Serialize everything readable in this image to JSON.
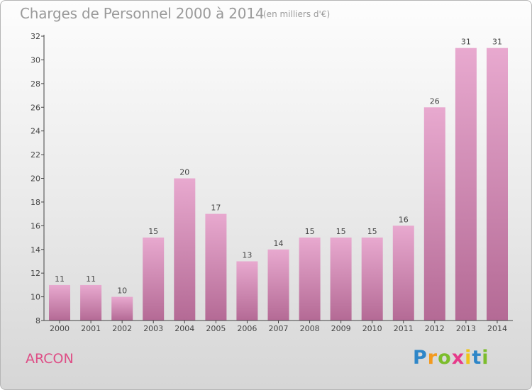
{
  "header": {
    "title": "Charges de Personnel 2000 à 2014",
    "unit": "(en milliers d'€)"
  },
  "footer": {
    "city": "ARCON",
    "logo_letters": [
      "P",
      "r",
      "o",
      "x",
      "i",
      "t",
      "i"
    ],
    "logo_colors": [
      "#2e86c8",
      "#f39a1e",
      "#7cbd2c",
      "#e63a8a",
      "#f0c419",
      "#2e86c8",
      "#7cbd2c"
    ]
  },
  "colors": {
    "bar_top": "#e8a9cf",
    "bar_bottom": "#b46a95",
    "city": "#de4e86",
    "title": "#9a9a9a"
  },
  "chart_data": {
    "type": "bar",
    "title": "Charges de Personnel 2000 à 2014",
    "subtitle": "(en milliers d'€)",
    "xlabel": "",
    "ylabel": "",
    "categories": [
      "2000",
      "2001",
      "2002",
      "2003",
      "2004",
      "2005",
      "2006",
      "2007",
      "2008",
      "2009",
      "2010",
      "2011",
      "2012",
      "2013",
      "2014"
    ],
    "values": [
      11,
      11,
      10,
      15,
      20,
      17,
      13,
      14,
      15,
      15,
      15,
      16,
      26,
      31,
      31
    ],
    "ylim": [
      8,
      32
    ],
    "yticks": [
      8,
      10,
      12,
      14,
      16,
      18,
      20,
      22,
      24,
      26,
      28,
      30,
      32
    ],
    "grid": false,
    "data_labels": true
  }
}
